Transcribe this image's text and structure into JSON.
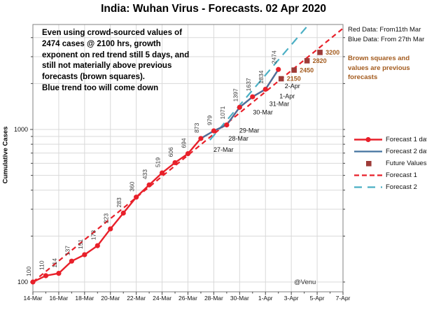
{
  "title": "India: Wuhan Virus - Forecasts. 02 Apr 2020",
  "watermark": "@Venu",
  "annotation": {
    "lines": [
      "Even using crowd-sourced values of",
      "2474 cases @ 2100 hrs, growth",
      "exponent on red trend still 5 days, and",
      "still not materially above previous",
      "forecasts (brown squares).",
      "Blue trend too will come down"
    ]
  },
  "side_panel": {
    "red_data_note": "Red Data: From11th Mar",
    "blue_data_note": "Blue Data: From 27th Mar",
    "brown_note_lines": [
      "Brown squares and",
      "values are previous",
      "forecasts"
    ]
  },
  "legend": {
    "items": [
      {
        "label": "Forecast 1 data"
      },
      {
        "label": "Forecast 2 data"
      },
      {
        "label": "Future Values"
      },
      {
        "label": "Forecast 1"
      },
      {
        "label": "Forecast 2"
      }
    ]
  },
  "colors": {
    "red": "#e8202a",
    "steel_blue": "#44739f",
    "teal": "#4bafc4",
    "brown_square": "#9e3b38",
    "brown_text": "#a35b1e",
    "gridline": "#d9d9d9",
    "spine": "#808080"
  },
  "chart_data": {
    "type": "line",
    "title": "India: Wuhan Virus - Forecasts. 02 Apr 2020",
    "xlabel": "",
    "ylabel": "Cumulative Cases",
    "y_scale": "log",
    "ylim": [
      86,
      4880
    ],
    "x_unit": "days since 14-Mar-2020",
    "grid": true,
    "legend_position": "right",
    "x_ticks": [
      {
        "label": "14-Mar",
        "day": 0
      },
      {
        "label": "16-Mar",
        "day": 2
      },
      {
        "label": "18-Mar",
        "day": 4
      },
      {
        "label": "20-Mar",
        "day": 6
      },
      {
        "label": "22-Mar",
        "day": 8
      },
      {
        "label": "24-Mar",
        "day": 10
      },
      {
        "label": "26-Mar",
        "day": 12
      },
      {
        "label": "28-Mar",
        "day": 14
      },
      {
        "label": "30-Mar",
        "day": 16
      },
      {
        "label": "1-Apr",
        "day": 18
      },
      {
        "label": "3-Apr",
        "day": 20
      },
      {
        "label": "5-Apr",
        "day": 22
      },
      {
        "label": "7-Apr",
        "day": 24
      }
    ],
    "y_major_ticks": [
      {
        "label": "100",
        "value": 100
      },
      {
        "label": "1000",
        "value": 1000
      }
    ],
    "y_minor_gridlines": [
      200,
      300,
      400,
      500,
      600,
      700,
      800,
      900,
      2000,
      3000,
      4000
    ],
    "series": [
      {
        "name": "Forecast 1 data",
        "type": "line+markers",
        "color": "#e8202a",
        "show_value_labels": true,
        "dates": [
          "14-Mar",
          "15-Mar",
          "16-Mar",
          "17-Mar",
          "18-Mar",
          "19-Mar",
          "20-Mar",
          "21-Mar",
          "22-Mar",
          "23-Mar",
          "24-Mar",
          "25-Mar",
          "26-Mar",
          "27-Mar",
          "28-Mar",
          "29-Mar",
          "30-Mar",
          "31-Mar",
          "1-Apr",
          "2-Apr"
        ],
        "days": [
          0,
          1,
          2,
          3,
          4,
          5,
          6,
          7,
          8,
          9,
          10,
          11,
          12,
          13,
          14,
          15,
          16,
          17,
          18,
          19
        ],
        "values": [
          100,
          110,
          114,
          137,
          151,
          173,
          223,
          283,
          360,
          433,
          519,
          606,
          694,
          873,
          979,
          1071,
          1397,
          1637,
          1834,
          2474
        ]
      },
      {
        "name": "Forecast 2 data",
        "type": "line",
        "color": "#44739f",
        "show_value_labels": false,
        "dates": [
          "27-Mar",
          "28-Mar",
          "29-Mar",
          "30-Mar",
          "31-Mar",
          "1-Apr",
          "2-Apr"
        ],
        "days": [
          13,
          14,
          15,
          16,
          17,
          18,
          19
        ],
        "values": [
          873,
          979,
          1071,
          1397,
          1637,
          1834,
          2474
        ]
      },
      {
        "name": "Future Values",
        "type": "points",
        "marker": "square",
        "color": "#9e3b38",
        "label_color": "#a35b1e",
        "dates": [
          "2-Apr",
          "3-Apr",
          "4-Apr",
          "5-Apr"
        ],
        "days": [
          19,
          20,
          21,
          22
        ],
        "values": [
          2150,
          2450,
          2820,
          3200
        ]
      },
      {
        "name": "Forecast 1",
        "type": "trend-dashed",
        "color": "#e8202a",
        "dash": "7 5",
        "start": {
          "day": 0,
          "value": 100
        },
        "end": {
          "day": 24,
          "value": 4600
        }
      },
      {
        "name": "Forecast 2",
        "type": "trend-dashed",
        "color": "#4bafc4",
        "dash": "12 8",
        "start": {
          "day": 13.7,
          "value": 853
        },
        "end": {
          "day": 21.35,
          "value": 4880
        }
      }
    ],
    "point_date_annotations": [
      {
        "label": "27-Mar",
        "day": 13,
        "value": 873
      },
      {
        "label": "28-Mar",
        "day": 14,
        "value": 979
      },
      {
        "label": "29-Mar",
        "day": 15,
        "value": 1071
      },
      {
        "label": "30-Mar",
        "day": 16,
        "value": 1397
      },
      {
        "label": "31-Mar",
        "day": 17,
        "value": 1637
      },
      {
        "label": "1-Apr",
        "day": 18,
        "value": 1834
      },
      {
        "label": "2-Apr",
        "day": 19,
        "value": 2474
      }
    ]
  }
}
